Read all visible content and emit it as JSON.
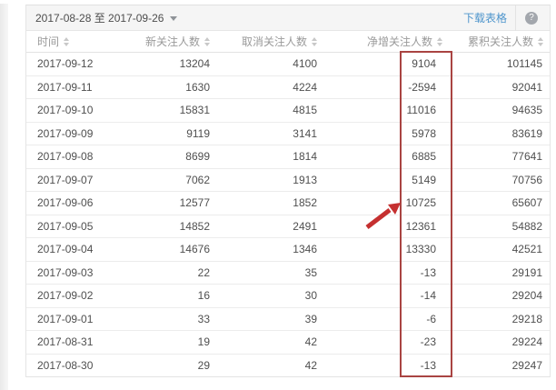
{
  "toolbar": {
    "date_range": "2017-08-28 至 2017-09-26",
    "download_label": "下载表格",
    "help_label": "?"
  },
  "table": {
    "columns": [
      "时间",
      "新关注人数",
      "取消关注人数",
      "净增关注人数",
      "累积关注人数"
    ],
    "rows": [
      [
        "2017-09-12",
        "13204",
        "4100",
        "9104",
        "101145"
      ],
      [
        "2017-09-11",
        "1630",
        "4224",
        "-2594",
        "92041"
      ],
      [
        "2017-09-10",
        "15831",
        "4815",
        "11016",
        "94635"
      ],
      [
        "2017-09-09",
        "9119",
        "3141",
        "5978",
        "83619"
      ],
      [
        "2017-09-08",
        "8699",
        "1814",
        "6885",
        "77641"
      ],
      [
        "2017-09-07",
        "7062",
        "1913",
        "5149",
        "70756"
      ],
      [
        "2017-09-06",
        "12577",
        "1852",
        "10725",
        "65607"
      ],
      [
        "2017-09-05",
        "14852",
        "2491",
        "12361",
        "54882"
      ],
      [
        "2017-09-04",
        "14676",
        "1346",
        "13330",
        "42521"
      ],
      [
        "2017-09-03",
        "22",
        "35",
        "-13",
        "29191"
      ],
      [
        "2017-09-02",
        "16",
        "30",
        "-14",
        "29204"
      ],
      [
        "2017-09-01",
        "33",
        "39",
        "-6",
        "29218"
      ],
      [
        "2017-08-31",
        "19",
        "42",
        "-23",
        "29224"
      ],
      [
        "2017-08-30",
        "29",
        "42",
        "-13",
        "29247"
      ]
    ]
  },
  "annotation": {
    "highlighted_column": "净增关注人数",
    "arrow_points_at_value": "10725",
    "highlight_box_color": "#a94442",
    "arrow_color": "#c53030"
  },
  "colors": {
    "link_blue": "#4e95cc",
    "topbar_bg": "#f5f5f5",
    "border": "#e7e7e7",
    "header_text": "#9a9a9a",
    "cell_text": "#4f4f4f"
  }
}
